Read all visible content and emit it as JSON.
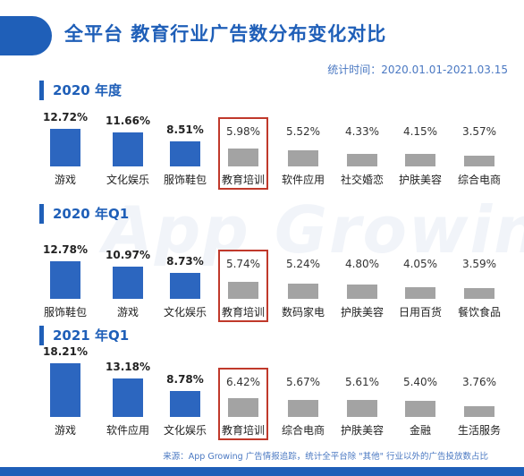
{
  "header": {
    "title": "全平台 教育行业广告数分布变化对比",
    "period": "统计时间：2020.01.01-2021.03.15"
  },
  "watermark": "App Growing",
  "source": "来源：App Growing 广告情报追踪，统计全平台除 \"其他\" 行业以外的广告投放数占比",
  "colors": {
    "accent": "#1f5fb8",
    "top3": "#2c66bf",
    "others": "#a3a3a3",
    "highlight": "#c0392b"
  },
  "chart_data": [
    {
      "type": "bar",
      "title": "2020 年度",
      "categories": [
        "游戏",
        "文化娱乐",
        "服饰鞋包",
        "教育培训",
        "软件应用",
        "社交婚恋",
        "护肤美容",
        "综合电商"
      ],
      "values": [
        12.72,
        11.66,
        8.51,
        5.98,
        5.52,
        4.33,
        4.15,
        3.57
      ],
      "labels": [
        "12.72%",
        "11.66%",
        "8.51%",
        "5.98%",
        "5.52%",
        "4.33%",
        "4.15%",
        "3.57%"
      ],
      "highlight": "教育培训"
    },
    {
      "type": "bar",
      "title": "2020 年Q1",
      "categories": [
        "服饰鞋包",
        "游戏",
        "文化娱乐",
        "教育培训",
        "数码家电",
        "护肤美容",
        "日用百货",
        "餐饮食品"
      ],
      "values": [
        12.78,
        10.97,
        8.73,
        5.74,
        5.24,
        4.8,
        4.05,
        3.59
      ],
      "labels": [
        "12.78%",
        "10.97%",
        "8.73%",
        "5.74%",
        "5.24%",
        "4.80%",
        "4.05%",
        "3.59%"
      ],
      "highlight": "教育培训"
    },
    {
      "type": "bar",
      "title": "2021 年Q1",
      "categories": [
        "游戏",
        "软件应用",
        "文化娱乐",
        "教育培训",
        "综合电商",
        "护肤美容",
        "金融",
        "生活服务"
      ],
      "values": [
        18.21,
        13.18,
        8.78,
        6.42,
        5.67,
        5.61,
        5.4,
        3.76
      ],
      "labels": [
        "18.21%",
        "13.18%",
        "8.78%",
        "6.42%",
        "5.67%",
        "5.61%",
        "5.40%",
        "3.76%"
      ],
      "highlight": "教育培训"
    }
  ]
}
